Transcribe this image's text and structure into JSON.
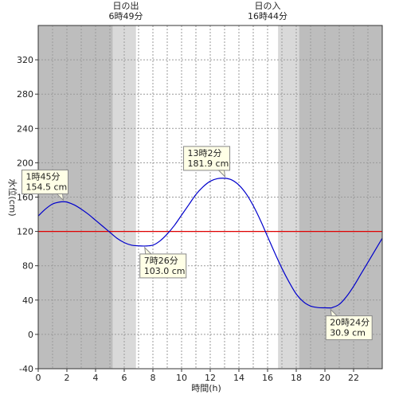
{
  "chart_data": {
    "type": "line",
    "xlabel": "時間(h)",
    "ylabel": "水位(cm)",
    "xlim": [
      0,
      24
    ],
    "ylim": [
      -40,
      360
    ],
    "x_ticks": [
      0,
      2,
      4,
      6,
      8,
      10,
      12,
      14,
      16,
      18,
      20,
      22
    ],
    "y_ticks": [
      -40,
      0,
      40,
      80,
      120,
      160,
      200,
      240,
      280,
      320
    ],
    "grid": true,
    "reference_line": {
      "value": 120,
      "color": "#e00000"
    },
    "line_color": "#0000cc",
    "series": [
      {
        "x": [
          0,
          0.5,
          1,
          1.5,
          1.75,
          2,
          2.5,
          3,
          3.5,
          4,
          4.5,
          5,
          5.5,
          6,
          6.5,
          7,
          7.43,
          8,
          8.5,
          9,
          9.5,
          10,
          10.5,
          11,
          11.5,
          12,
          12.5,
          13.03,
          13.5,
          14,
          14.5,
          15,
          15.5,
          16,
          16.5,
          17,
          17.5,
          18,
          18.5,
          19,
          19.5,
          20,
          20.4,
          20.5,
          21,
          21.5,
          22,
          22.5,
          23,
          23.5,
          24
        ],
        "values": [
          138,
          146,
          152,
          154.3,
          154.5,
          154.2,
          151,
          146,
          140,
          133,
          126,
          119,
          112,
          107,
          104,
          103.2,
          103,
          104,
          109,
          117,
          127,
          139,
          151,
          163,
          172,
          178.5,
          181.5,
          181.9,
          180,
          174,
          164,
          150,
          133,
          114,
          95,
          77,
          61,
          47,
          38,
          33,
          31.3,
          31,
          30.9,
          31.2,
          35,
          44,
          56,
          70,
          84,
          98,
          112
        ]
      }
    ],
    "daylight": {
      "sunrise": {
        "title": "日の出",
        "time_label": "6時49分",
        "hour": 6.82
      },
      "sunset": {
        "title": "日の入",
        "time_label": "16時44分",
        "hour": 16.73
      },
      "night_shade": "#bdbdbd",
      "twilight_shade": "#d9d9d9",
      "dawn_start": 5.2,
      "dawn_end": 6.82,
      "dusk_start": 16.73,
      "dusk_end": 18.2
    },
    "annotations": [
      {
        "time": "1時45分",
        "level": "154.5 cm",
        "x": 1.75,
        "y": 154.5,
        "kind": "high"
      },
      {
        "time": "7時26分",
        "level": "103.0 cm",
        "x": 7.43,
        "y": 103.0,
        "kind": "low"
      },
      {
        "time": "13時2分",
        "level": "181.9 cm",
        "x": 13.03,
        "y": 181.9,
        "kind": "high"
      },
      {
        "time": "20時24分",
        "level": "30.9 cm",
        "x": 20.4,
        "y": 30.9,
        "kind": "low"
      }
    ]
  }
}
